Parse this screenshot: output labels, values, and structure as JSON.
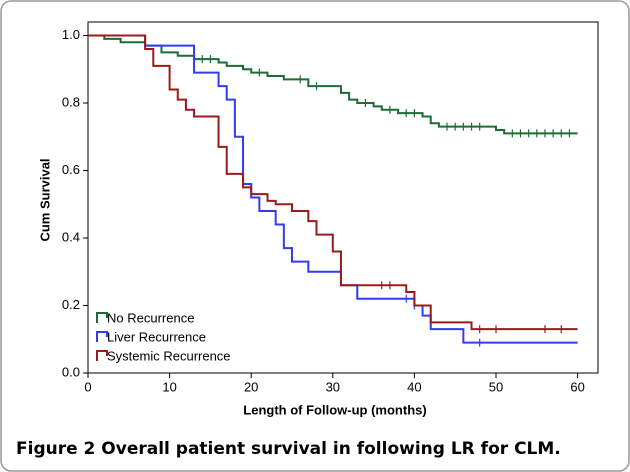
{
  "chart_data": {
    "type": "line",
    "step": "post",
    "caption": "Figure 2 Overall patient survival in following LR for CLM.",
    "xlabel": "Length of Follow-up (months)",
    "ylabel": "Cum Survival",
    "xlim": [
      0,
      62.5
    ],
    "ylim": [
      0,
      1.04
    ],
    "xticks": [
      0,
      10,
      20,
      30,
      40,
      50,
      60
    ],
    "yticks": [
      {
        "value": 0,
        "label": "0.0"
      },
      0.2,
      0.4,
      0.6,
      0.8,
      {
        "value": 1,
        "label": "1.0"
      }
    ],
    "legend": "lower left",
    "series": [
      {
        "name": "No Recurrence",
        "color": "#1e6b35",
        "x": [
          0,
          2,
          4,
          7,
          9,
          11,
          13,
          16,
          17,
          19,
          20,
          22,
          24,
          27,
          31,
          32,
          33,
          35,
          36,
          38,
          41,
          42,
          43,
          50,
          51,
          60
        ],
        "values": [
          1.0,
          0.99,
          0.98,
          0.97,
          0.95,
          0.94,
          0.93,
          0.92,
          0.91,
          0.9,
          0.89,
          0.88,
          0.87,
          0.85,
          0.83,
          0.81,
          0.8,
          0.79,
          0.78,
          0.77,
          0.76,
          0.74,
          0.73,
          0.72,
          0.71,
          0.71
        ],
        "censored": [
          14,
          15,
          21,
          26,
          28,
          34,
          37,
          39,
          40,
          44,
          45,
          46,
          47,
          48,
          52,
          53,
          54,
          55,
          56,
          57,
          58,
          59
        ]
      },
      {
        "name": "Liver Recurrence",
        "color": "#2f3cf0",
        "x": [
          0,
          7,
          13,
          16,
          17,
          18,
          19,
          20,
          21,
          23,
          24,
          25,
          27,
          31,
          33,
          40,
          41,
          42,
          46,
          60
        ],
        "values": [
          1.0,
          0.97,
          0.89,
          0.85,
          0.81,
          0.7,
          0.56,
          0.52,
          0.48,
          0.44,
          0.37,
          0.33,
          0.3,
          0.26,
          0.22,
          0.2,
          0.17,
          0.13,
          0.09,
          0.09
        ],
        "censored": [
          39,
          40,
          48
        ]
      },
      {
        "name": "Systemic Recurrence",
        "color": "#9b1b1b",
        "x": [
          0,
          7,
          8,
          10,
          11,
          12,
          13,
          16,
          17,
          19,
          20,
          22,
          23,
          25,
          27,
          28,
          30,
          31,
          39,
          40,
          42,
          47,
          60
        ],
        "values": [
          1.0,
          0.96,
          0.91,
          0.84,
          0.81,
          0.78,
          0.76,
          0.67,
          0.59,
          0.55,
          0.53,
          0.51,
          0.5,
          0.48,
          0.45,
          0.41,
          0.36,
          0.26,
          0.24,
          0.2,
          0.15,
          0.13,
          0.13
        ],
        "censored": [
          36,
          37,
          48,
          50,
          56,
          58
        ]
      }
    ]
  }
}
